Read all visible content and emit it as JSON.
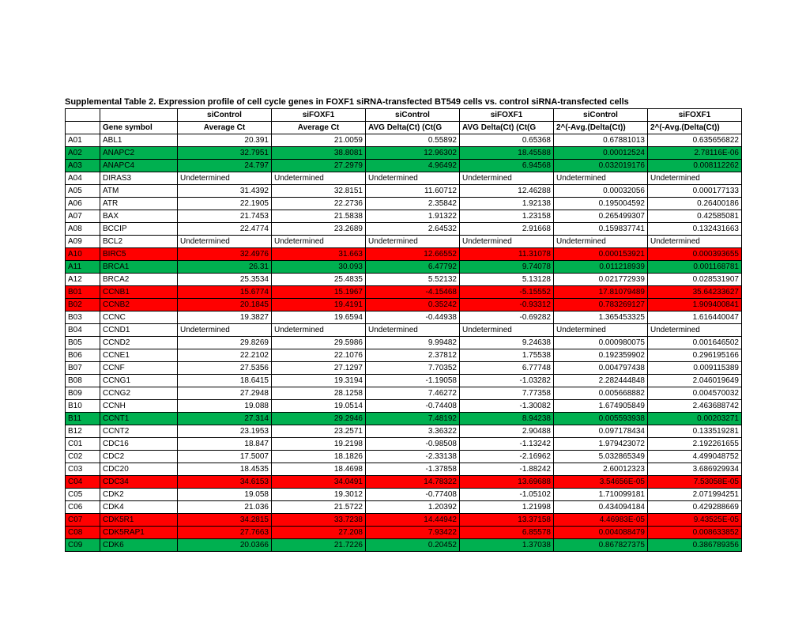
{
  "title": "Supplemental Table 2.  Expression profile of cell cycle genes in FOXF1 siRNA-transfected BT549 cells vs. control siRNA-transfected cells",
  "hdr1": [
    "",
    "",
    "siControl",
    "siFOXF1",
    "siControl",
    "siFOXF1",
    "siControl",
    "siFOXF1"
  ],
  "hdr2": [
    "",
    "Gene symbol",
    "Average Ct",
    "Average Ct",
    "AVG Delta(Ct)  (Ct(G",
    "AVG Delta(Ct)  (Ct(G",
    "2^(-Avg.(Delta(Ct))",
    "2^(-Avg.(Delta(Ct))"
  ],
  "rows": [
    {
      "c": [
        "A01",
        "ABL1",
        "20.391",
        "21.0059",
        "0.55892",
        "0.65368",
        "0.67881013",
        "0.635656822"
      ],
      "hl": ""
    },
    {
      "c": [
        "A02",
        "ANAPC2",
        "32.7951",
        "38.8081",
        "12.96302",
        "18.45588",
        "0.00012524",
        "2.78116E-06"
      ],
      "hl": "green"
    },
    {
      "c": [
        "A03",
        "ANAPC4",
        "24.797",
        "27.2979",
        "4.96492",
        "6.94568",
        "0.032019176",
        "0.008112262"
      ],
      "hl": "green"
    },
    {
      "c": [
        "A04",
        "DIRAS3",
        "Undetermined",
        "Undetermined",
        "Undetermined",
        "Undetermined",
        "Undetermined",
        "Undetermined"
      ],
      "hl": "",
      "und": true
    },
    {
      "c": [
        "A05",
        "ATM",
        "31.4392",
        "32.8151",
        "11.60712",
        "12.46288",
        "0.00032056",
        "0.000177133"
      ],
      "hl": ""
    },
    {
      "c": [
        "A06",
        "ATR",
        "22.1905",
        "22.2736",
        "2.35842",
        "1.92138",
        "0.195004592",
        "0.26400186"
      ],
      "hl": ""
    },
    {
      "c": [
        "A07",
        "BAX",
        "21.7453",
        "21.5838",
        "1.91322",
        "1.23158",
        "0.265499307",
        "0.42585081"
      ],
      "hl": ""
    },
    {
      "c": [
        "A08",
        "BCCIP",
        "22.4774",
        "23.2689",
        "2.64532",
        "2.91668",
        "0.159837741",
        "0.132431663"
      ],
      "hl": ""
    },
    {
      "c": [
        "A09",
        "BCL2",
        "Undetermined",
        "Undetermined",
        "Undetermined",
        "Undetermined",
        "Undetermined",
        "Undetermined"
      ],
      "hl": "",
      "und": true
    },
    {
      "c": [
        "A10",
        "BIRC5",
        "32.4976",
        "31.663",
        "12.66552",
        "11.31078",
        "0.000153921",
        "0.000393655"
      ],
      "hl": "red"
    },
    {
      "c": [
        "A11",
        "BRCA1",
        "26.31",
        "30.093",
        "6.47792",
        "9.74078",
        "0.011218939",
        "0.001168781"
      ],
      "hl": "green"
    },
    {
      "c": [
        "A12",
        "BRCA2",
        "25.3534",
        "25.4835",
        "5.52132",
        "5.13128",
        "0.021772939",
        "0.028531907"
      ],
      "hl": ""
    },
    {
      "c": [
        "B01",
        "CCNB1",
        "15.6774",
        "15.1967",
        "-4.15468",
        "-5.15552",
        "17.81079489",
        "35.64233627"
      ],
      "hl": "red"
    },
    {
      "c": [
        "B02",
        "CCNB2",
        "20.1845",
        "19.4191",
        "0.35242",
        "-0.93312",
        "0.783269127",
        "1.909400841"
      ],
      "hl": "red"
    },
    {
      "c": [
        "B03",
        "CCNC",
        "19.3827",
        "19.6594",
        "-0.44938",
        "-0.69282",
        "1.365453325",
        "1.616440047"
      ],
      "hl": ""
    },
    {
      "c": [
        "B04",
        "CCND1",
        "Undetermined",
        "Undetermined",
        "Undetermined",
        "Undetermined",
        "Undetermined",
        "Undetermined"
      ],
      "hl": "",
      "und": true
    },
    {
      "c": [
        "B05",
        "CCND2",
        "29.8269",
        "29.5986",
        "9.99482",
        "9.24638",
        "0.000980075",
        "0.001646502"
      ],
      "hl": ""
    },
    {
      "c": [
        "B06",
        "CCNE1",
        "22.2102",
        "22.1076",
        "2.37812",
        "1.75538",
        "0.192359902",
        "0.296195166"
      ],
      "hl": ""
    },
    {
      "c": [
        "B07",
        "CCNF",
        "27.5356",
        "27.1297",
        "7.70352",
        "6.77748",
        "0.004797438",
        "0.009115389"
      ],
      "hl": ""
    },
    {
      "c": [
        "B08",
        "CCNG1",
        "18.6415",
        "19.3194",
        "-1.19058",
        "-1.03282",
        "2.282444848",
        "2.046019649"
      ],
      "hl": ""
    },
    {
      "c": [
        "B09",
        "CCNG2",
        "27.2948",
        "28.1258",
        "7.46272",
        "7.77358",
        "0.005668882",
        "0.004570032"
      ],
      "hl": ""
    },
    {
      "c": [
        "B10",
        "CCNH",
        "19.088",
        "19.0514",
        "-0.74408",
        "-1.30082",
        "1.674905849",
        "2.463688742"
      ],
      "hl": ""
    },
    {
      "c": [
        "B11",
        "CCNT1",
        "27.314",
        "29.2946",
        "7.48192",
        "8.94238",
        "0.005593938",
        "0.00203271"
      ],
      "hl": "green"
    },
    {
      "c": [
        "B12",
        "CCNT2",
        "23.1953",
        "23.2571",
        "3.36322",
        "2.90488",
        "0.097178434",
        "0.133519281"
      ],
      "hl": ""
    },
    {
      "c": [
        "C01",
        "CDC16",
        "18.847",
        "19.2198",
        "-0.98508",
        "-1.13242",
        "1.979423072",
        "2.192261655"
      ],
      "hl": ""
    },
    {
      "c": [
        "C02",
        "CDC2",
        "17.5007",
        "18.1826",
        "-2.33138",
        "-2.16962",
        "5.032865349",
        "4.499048752"
      ],
      "hl": ""
    },
    {
      "c": [
        "C03",
        "CDC20",
        "18.4535",
        "18.4698",
        "-1.37858",
        "-1.88242",
        "2.60012323",
        "3.686929934"
      ],
      "hl": ""
    },
    {
      "c": [
        "C04",
        "CDC34",
        "34.6153",
        "34.0491",
        "14.78322",
        "13.69688",
        "3.54656E-05",
        "7.53058E-05"
      ],
      "hl": "red"
    },
    {
      "c": [
        "C05",
        "CDK2",
        "19.058",
        "19.3012",
        "-0.77408",
        "-1.05102",
        "1.710099181",
        "2.071994251"
      ],
      "hl": ""
    },
    {
      "c": [
        "C06",
        "CDK4",
        "21.036",
        "21.5722",
        "1.20392",
        "1.21998",
        "0.434094184",
        "0.429288669"
      ],
      "hl": ""
    },
    {
      "c": [
        "C07",
        "CDK5R1",
        "34.2815",
        "33.7238",
        "14.44942",
        "13.37158",
        "4.46983E-05",
        "9.43525E-05"
      ],
      "hl": "red"
    },
    {
      "c": [
        "C08",
        "CDK5RAP1",
        "27.7663",
        "27.208",
        "7.93422",
        "6.85578",
        "0.004088479",
        "0.008633852"
      ],
      "hl": "red"
    },
    {
      "c": [
        "C09",
        "CDK6",
        "20.0366",
        "21.7226",
        "0.20452",
        "1.37038",
        "0.867827375",
        "0.386789356"
      ],
      "hl": "green"
    }
  ]
}
